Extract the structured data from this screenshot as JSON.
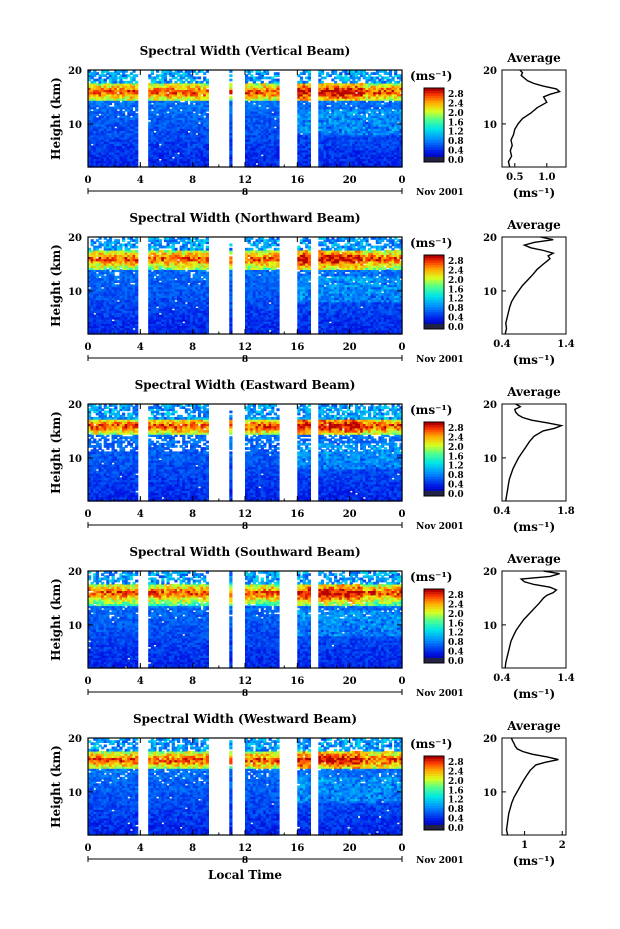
{
  "figure": {
    "xlabel": "Local Time",
    "date_label": "Nov 2001",
    "date_day": "8"
  },
  "chart_data": [
    {
      "type": "heatmap",
      "title": "Spectral Width (Vertical Beam)",
      "xlabel": "Local Time",
      "ylabel": "Height (km)",
      "x_ticks": [
        "0",
        "4",
        "8",
        "12",
        "16",
        "20",
        "0"
      ],
      "y_ticks": [
        "20",
        "10"
      ],
      "xlim": [
        0,
        24
      ],
      "ylim": [
        2,
        20
      ],
      "colorbar": {
        "unit": "(ms⁻¹)",
        "ticks": [
          "2.8",
          "2.4",
          "2.0",
          "1.6",
          "1.2",
          "0.8",
          "0.4",
          "0.0"
        ],
        "range": [
          0,
          3.0
        ]
      },
      "data_gaps_hours": [
        [
          3.9,
          4.6
        ],
        [
          9.3,
          10.8
        ],
        [
          11.1,
          11.9
        ],
        [
          14.7,
          15.9
        ],
        [
          17.0,
          17.6
        ]
      ],
      "enhanced_band_km": [
        14.5,
        17.5
      ],
      "peak_height_km": 16,
      "average_profile": {
        "title": "Average",
        "xlabel": "(ms⁻¹)",
        "x_ticks": [
          "0.5",
          "1.0"
        ],
        "xlim": [
          0.3,
          1.3
        ],
        "y_ticks": [
          "20",
          "10"
        ],
        "heights_km": [
          2,
          3,
          4,
          5,
          6,
          7,
          8,
          9,
          10,
          11,
          12,
          13,
          14,
          15,
          15.5,
          16,
          16.5,
          17,
          17.5,
          18,
          18.5,
          19,
          19.5,
          20
        ],
        "values": [
          0.42,
          0.4,
          0.45,
          0.43,
          0.46,
          0.44,
          0.48,
          0.5,
          0.55,
          0.62,
          0.75,
          0.85,
          1.0,
          0.95,
          1.05,
          1.2,
          1.15,
          0.95,
          0.8,
          0.7,
          0.65,
          0.6,
          0.62,
          0.58
        ]
      }
    },
    {
      "type": "heatmap",
      "title": "Spectral Width (Northward Beam)",
      "xlabel": "Local Time",
      "ylabel": "Height (km)",
      "x_ticks": [
        "0",
        "4",
        "8",
        "12",
        "16",
        "20",
        "0"
      ],
      "y_ticks": [
        "20",
        "10"
      ],
      "xlim": [
        0,
        24
      ],
      "ylim": [
        2,
        20
      ],
      "colorbar": {
        "unit": "(ms⁻¹)",
        "ticks": [
          "2.8",
          "2.4",
          "2.0",
          "1.6",
          "1.2",
          "0.8",
          "0.4",
          "0.0"
        ],
        "range": [
          0,
          3.0
        ]
      },
      "data_gaps_hours": [
        [
          3.9,
          4.6
        ],
        [
          9.3,
          10.8
        ],
        [
          11.1,
          11.9
        ],
        [
          14.7,
          15.9
        ],
        [
          17.0,
          17.6
        ]
      ],
      "enhanced_band_km": [
        14.0,
        17.5
      ],
      "peak_height_km": 16,
      "average_profile": {
        "title": "Average",
        "xlabel": "(ms⁻¹)",
        "x_ticks": [
          "0.4",
          "1.4"
        ],
        "xlim": [
          0.4,
          1.4
        ],
        "y_ticks": [
          "20",
          "10"
        ],
        "heights_km": [
          2,
          3,
          4,
          5,
          6,
          7,
          8,
          9,
          10,
          11,
          12,
          13,
          14,
          15,
          15.5,
          16,
          16.5,
          17,
          17.5,
          18,
          18.5,
          19,
          19.5,
          20
        ],
        "values": [
          0.45,
          0.47,
          0.46,
          0.48,
          0.5,
          0.52,
          0.55,
          0.6,
          0.66,
          0.72,
          0.8,
          0.88,
          0.95,
          1.05,
          1.1,
          1.15,
          1.12,
          1.2,
          1.05,
          0.85,
          0.75,
          0.9,
          1.2,
          1.0
        ]
      }
    },
    {
      "type": "heatmap",
      "title": "Spectral Width (Eastward Beam)",
      "xlabel": "Local Time",
      "ylabel": "Height (km)",
      "x_ticks": [
        "0",
        "4",
        "8",
        "12",
        "16",
        "20",
        "0"
      ],
      "y_ticks": [
        "20",
        "10"
      ],
      "xlim": [
        0,
        24
      ],
      "ylim": [
        2,
        20
      ],
      "colorbar": {
        "unit": "(ms⁻¹)",
        "ticks": [
          "2.8",
          "2.4",
          "2.0",
          "1.6",
          "1.2",
          "0.8",
          "0.4",
          "0.0"
        ],
        "range": [
          0,
          3.0
        ]
      },
      "data_gaps_hours": [
        [
          3.9,
          4.6
        ],
        [
          9.3,
          10.8
        ],
        [
          11.1,
          11.9
        ],
        [
          14.7,
          15.9
        ],
        [
          17.0,
          17.6
        ]
      ],
      "enhanced_band_km": [
        14.5,
        17.0
      ],
      "peak_height_km": 16,
      "average_profile": {
        "title": "Average",
        "xlabel": "(ms⁻¹)",
        "x_ticks": [
          "0.4",
          "1.8"
        ],
        "xlim": [
          0.4,
          1.8
        ],
        "y_ticks": [
          "20",
          "10"
        ],
        "heights_km": [
          2,
          3,
          4,
          5,
          6,
          7,
          8,
          9,
          10,
          11,
          12,
          13,
          14,
          15,
          15.5,
          16,
          16.5,
          17,
          17.5,
          18,
          18.5,
          19,
          19.5,
          20
        ],
        "values": [
          0.48,
          0.5,
          0.52,
          0.54,
          0.56,
          0.6,
          0.64,
          0.7,
          0.76,
          0.84,
          0.92,
          1.0,
          1.1,
          1.3,
          1.55,
          1.7,
          1.4,
          1.05,
          0.85,
          0.75,
          0.7,
          0.68,
          0.8,
          0.7
        ]
      }
    },
    {
      "type": "heatmap",
      "title": "Spectral Width (Southward Beam)",
      "xlabel": "Local Time",
      "ylabel": "Height (km)",
      "x_ticks": [
        "0",
        "4",
        "8",
        "12",
        "16",
        "20",
        "0"
      ],
      "y_ticks": [
        "20",
        "10"
      ],
      "xlim": [
        0,
        24
      ],
      "ylim": [
        2,
        20
      ],
      "colorbar": {
        "unit": "(ms⁻¹)",
        "ticks": [
          "2.8",
          "2.4",
          "2.0",
          "1.6",
          "1.2",
          "0.8",
          "0.4",
          "0.0"
        ],
        "range": [
          0,
          3.0
        ]
      },
      "data_gaps_hours": [
        [
          3.9,
          4.6
        ],
        [
          9.3,
          10.8
        ],
        [
          11.1,
          11.9
        ],
        [
          14.7,
          15.9
        ],
        [
          17.0,
          17.6
        ]
      ],
      "enhanced_band_km": [
        13.5,
        17.5
      ],
      "peak_height_km": 16,
      "average_profile": {
        "title": "Average",
        "xlabel": "(ms⁻¹)",
        "x_ticks": [
          "0.4",
          "1.4"
        ],
        "xlim": [
          0.4,
          1.4
        ],
        "y_ticks": [
          "20",
          "10"
        ],
        "heights_km": [
          2,
          3,
          4,
          5,
          6,
          7,
          8,
          9,
          10,
          11,
          12,
          13,
          14,
          15,
          15.5,
          16,
          16.5,
          17,
          17.5,
          18,
          18.5,
          19,
          19.5,
          20
        ],
        "values": [
          0.45,
          0.46,
          0.48,
          0.5,
          0.52,
          0.54,
          0.58,
          0.62,
          0.68,
          0.74,
          0.82,
          0.9,
          0.98,
          1.05,
          1.1,
          1.2,
          1.25,
          1.15,
          0.9,
          0.75,
          0.7,
          1.15,
          1.3,
          1.05
        ]
      }
    },
    {
      "type": "heatmap",
      "title": "Spectral Width (Westward Beam)",
      "xlabel": "Local Time",
      "ylabel": "Height (km)",
      "x_ticks": [
        "0",
        "4",
        "8",
        "12",
        "16",
        "20",
        "0"
      ],
      "y_ticks": [
        "20",
        "10"
      ],
      "xlim": [
        0,
        24
      ],
      "ylim": [
        2,
        20
      ],
      "colorbar": {
        "unit": "(ms⁻¹)",
        "ticks": [
          "2.8",
          "2.4",
          "2.0",
          "1.6",
          "1.2",
          "0.8",
          "0.4",
          "0.0"
        ],
        "range": [
          0,
          3.0
        ]
      },
      "data_gaps_hours": [
        [
          3.9,
          4.6
        ],
        [
          9.3,
          10.8
        ],
        [
          11.1,
          11.9
        ],
        [
          14.7,
          15.9
        ],
        [
          17.0,
          17.6
        ]
      ],
      "enhanced_band_km": [
        14.5,
        17.5
      ],
      "peak_height_km": 16,
      "average_profile": {
        "title": "Average",
        "xlabel": "(ms⁻¹)",
        "x_ticks": [
          "1",
          "2"
        ],
        "xlim": [
          0.4,
          2.1
        ],
        "y_ticks": [
          "20",
          "10"
        ],
        "heights_km": [
          2,
          3,
          4,
          5,
          6,
          7,
          8,
          9,
          10,
          11,
          12,
          13,
          14,
          15,
          15.5,
          16,
          16.5,
          17,
          17.5,
          18,
          18.5,
          19,
          19.5,
          20
        ],
        "values": [
          0.55,
          0.52,
          0.54,
          0.56,
          0.58,
          0.62,
          0.66,
          0.72,
          0.8,
          0.88,
          0.96,
          1.05,
          1.15,
          1.3,
          1.55,
          1.9,
          1.6,
          1.2,
          0.95,
          0.8,
          0.75,
          0.72,
          0.68,
          0.65
        ]
      }
    }
  ]
}
